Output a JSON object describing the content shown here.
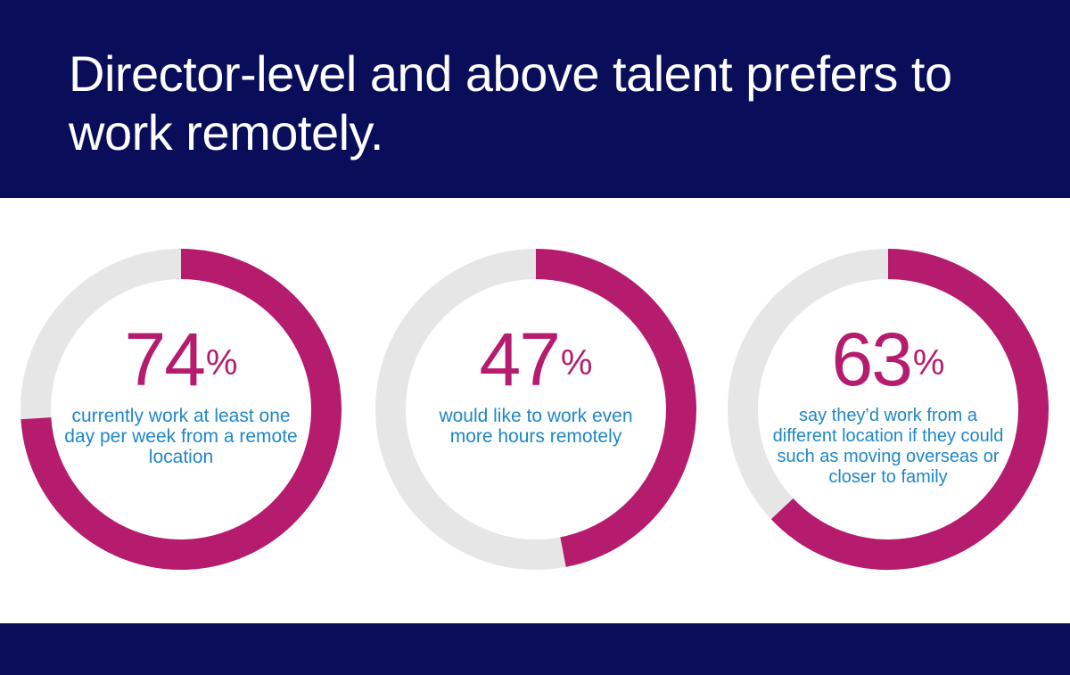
{
  "title": "Director-level and above talent prefers to work remotely.",
  "colors": {
    "banner": "#0a0d5a",
    "accent": "#b51c6e",
    "track": "#e6e6e6",
    "caption": "#1f87c8"
  },
  "chart_data": [
    {
      "type": "pie",
      "value": 74,
      "unit": "%",
      "label": "74",
      "caption": "currently work at least one day per week from a remote location"
    },
    {
      "type": "pie",
      "value": 47,
      "unit": "%",
      "label": "47",
      "caption": "would like to work even more hours remotely"
    },
    {
      "type": "pie",
      "value": 63,
      "unit": "%",
      "label": "63",
      "caption": "say they’d work from a different location if they could such as moving overseas or closer to family"
    }
  ]
}
